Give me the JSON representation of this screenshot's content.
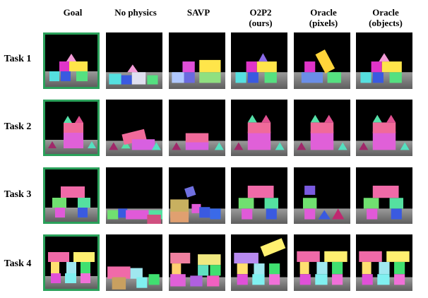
{
  "columns": [
    "Goal",
    "No physics",
    "SAVP",
    "O2P2\n(ours)",
    "Oracle\n(pixels)",
    "Oracle\n(objects)"
  ],
  "column_lines": [
    [
      "Goal"
    ],
    [
      "No physics"
    ],
    [
      "SAVP"
    ],
    [
      "O2P2",
      "(ours)"
    ],
    [
      "Oracle",
      "(pixels)"
    ],
    [
      "Oracle",
      "(objects)"
    ]
  ],
  "rows": [
    "Task 1",
    "Task 2",
    "Task 3",
    "Task 4"
  ],
  "colors": {
    "goal_border": "#2aa05a",
    "background": "#000000",
    "floor_top": "#8a8a8a",
    "floor_bottom": "#6e6e6e"
  }
}
